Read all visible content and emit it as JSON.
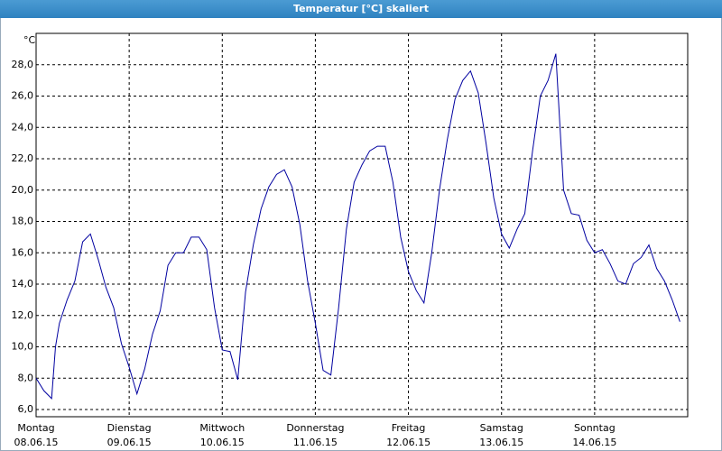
{
  "chart_data": {
    "type": "line",
    "title": "Temperatur [°C] skaliert",
    "ylabel": "°C",
    "x": [
      0,
      2,
      4,
      5,
      6,
      8,
      10,
      12,
      14,
      16,
      18,
      20,
      22,
      24,
      26,
      28,
      30,
      32,
      34,
      36,
      38,
      40,
      42,
      44,
      46,
      48,
      50,
      52,
      54,
      56,
      58,
      60,
      62,
      64,
      66,
      68,
      70,
      72,
      74,
      76,
      78,
      80,
      82,
      84,
      86,
      88,
      90,
      92,
      94,
      96,
      98,
      100,
      102,
      104,
      106,
      108,
      110,
      112,
      114,
      116,
      118,
      120,
      122,
      124,
      126,
      128,
      130,
      132,
      134,
      136,
      138,
      140,
      142,
      144,
      146,
      148,
      150,
      152,
      154,
      156,
      158,
      160,
      162,
      164,
      166
    ],
    "values": [
      8.0,
      7.2,
      6.7,
      10.0,
      11.5,
      13.0,
      14.2,
      16.7,
      17.2,
      15.6,
      13.8,
      12.5,
      10.2,
      8.7,
      7.0,
      8.6,
      10.8,
      12.3,
      15.2,
      16.0,
      16.0,
      17.0,
      17.0,
      16.2,
      12.5,
      9.8,
      9.7,
      7.9,
      13.5,
      16.5,
      18.8,
      20.2,
      21.0,
      21.3,
      20.2,
      17.8,
      14.2,
      11.5,
      8.5,
      8.2,
      12.5,
      17.5,
      20.5,
      21.6,
      22.5,
      22.8,
      22.8,
      20.5,
      17.0,
      14.8,
      13.6,
      12.8,
      16.0,
      20.0,
      23.2,
      25.8,
      27.0,
      27.6,
      26.2,
      23.0,
      19.5,
      17.2,
      16.3,
      17.5,
      18.5,
      22.5,
      26.0,
      27.0,
      28.7,
      20.0,
      18.5,
      18.4,
      16.8,
      16.0,
      16.2,
      15.3,
      14.2,
      14.0,
      15.3,
      15.7,
      16.5,
      15.0,
      14.2,
      13.0,
      11.6
    ],
    "color": "#0000a0",
    "xlim": [
      0,
      168
    ],
    "xticks": [
      {
        "value": 0,
        "label": "Montag"
      },
      {
        "value": 24,
        "label": "Dienstag"
      },
      {
        "value": 48,
        "label": "Mittwoch"
      },
      {
        "value": 72,
        "label": "Donnerstag"
      },
      {
        "value": 96,
        "label": "Freitag"
      },
      {
        "value": 120,
        "label": "Samstag"
      },
      {
        "value": 144,
        "label": "Sonntag"
      }
    ],
    "xtick_dates": [
      "08.06.15",
      "09.06.15",
      "10.06.15",
      "11.06.15",
      "12.06.15",
      "13.06.15",
      "14.06.15"
    ],
    "ylim": [
      5.54,
      30.0
    ],
    "yticks": [
      {
        "value": 6,
        "label": "6,0"
      },
      {
        "value": 8,
        "label": "8,0"
      },
      {
        "value": 10,
        "label": "10,0"
      },
      {
        "value": 12,
        "label": "12,0"
      },
      {
        "value": 14,
        "label": "14,0"
      },
      {
        "value": 16,
        "label": "16,0"
      },
      {
        "value": 18,
        "label": "18,0"
      },
      {
        "value": 20,
        "label": "20,0"
      },
      {
        "value": 22,
        "label": "22,0"
      },
      {
        "value": 24,
        "label": "24,0"
      },
      {
        "value": 26,
        "label": "26,0"
      },
      {
        "value": 28,
        "label": "28,0"
      }
    ],
    "grid": true
  }
}
